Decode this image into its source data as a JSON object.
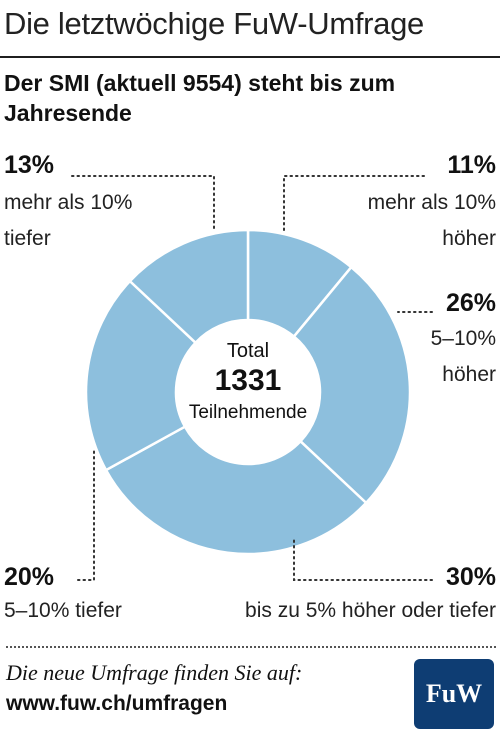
{
  "header": "Die letztwöchige FuW-Umfrage",
  "chart_data": {
    "type": "pie",
    "title": "Der SMI (aktuell 9554) steht bis zum Jahresende",
    "center": {
      "line1": "Total",
      "value": "1331",
      "line3": "Teilnehmende"
    },
    "slices": [
      {
        "label": "mehr als 10% höher",
        "value": 11,
        "pct_text": "11%",
        "desc": [
          "mehr als 10%",
          "höher"
        ]
      },
      {
        "label": "5–10% höher",
        "value": 26,
        "pct_text": "26%",
        "desc": [
          "5–10%",
          "höher"
        ]
      },
      {
        "label": "bis zu 5% höher oder tiefer",
        "value": 30,
        "pct_text": "30%",
        "desc": [
          "bis zu 5% höher oder tiefer"
        ]
      },
      {
        "label": "5–10% tiefer",
        "value": 20,
        "pct_text": "20%",
        "desc": [
          "5–10% tiefer"
        ]
      },
      {
        "label": "mehr als 10% tiefer",
        "value": 13,
        "pct_text": "13%",
        "desc": [
          "mehr als 10%",
          "tiefer"
        ]
      }
    ],
    "colors": {
      "slice": "#8dbfdd",
      "separator": "#ffffff",
      "leader": "#333333"
    }
  },
  "footer": {
    "text": "Die neue Umfrage finden Sie auf:",
    "url": "www.fuw.ch/umfragen",
    "logo": "FuW"
  }
}
